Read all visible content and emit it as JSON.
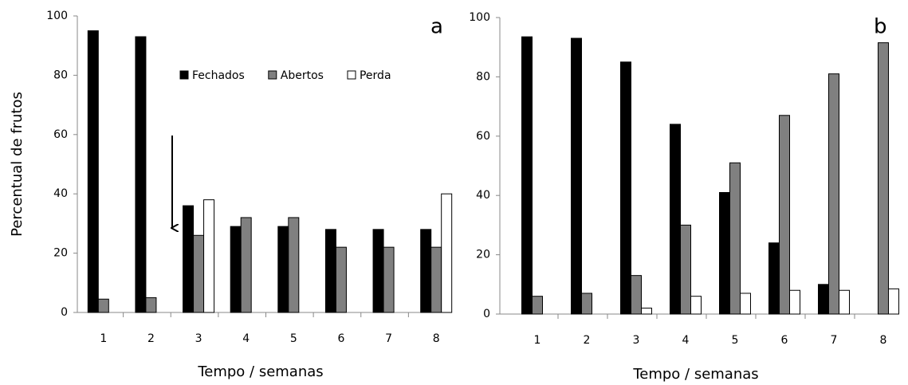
{
  "chart_data": [
    {
      "type": "bar",
      "annotation": "a",
      "y_label": "Percentual de frutos",
      "x_label": "Tempo / semanas",
      "categories": [
        "1",
        "2",
        "3",
        "4",
        "5",
        "6",
        "7",
        "8"
      ],
      "series": [
        {
          "name": "Fechados",
          "color": "#000000",
          "values": [
            95,
            93,
            36,
            29,
            29,
            28,
            28,
            28
          ]
        },
        {
          "name": "Abertos",
          "color": "#808080",
          "values": [
            4.5,
            5,
            26,
            32,
            32,
            22,
            22,
            22
          ]
        },
        {
          "name": "Perda",
          "color": "#ffffff",
          "values": [
            0,
            0,
            38,
            0,
            0,
            0,
            0,
            40
          ]
        }
      ],
      "ylim": [
        0,
        100
      ],
      "yticks": [
        0,
        20,
        40,
        60,
        80,
        100
      ]
    },
    {
      "type": "bar",
      "annotation": "b",
      "x_label": "Tempo / semanas",
      "categories": [
        "1",
        "2",
        "3",
        "4",
        "5",
        "6",
        "7",
        "8"
      ],
      "series": [
        {
          "color": "#000000",
          "values": [
            93.5,
            93,
            85,
            64,
            41,
            24,
            10,
            0
          ]
        },
        {
          "color": "#808080",
          "values": [
            6,
            7,
            13,
            30,
            51,
            67,
            81,
            91.5
          ]
        },
        {
          "color": "#ffffff",
          "values": [
            0,
            0,
            2,
            6,
            7,
            8,
            8,
            8.5
          ]
        }
      ],
      "ylim": [
        0,
        100
      ],
      "yticks": [
        0,
        20,
        40,
        60,
        80,
        100
      ]
    }
  ]
}
